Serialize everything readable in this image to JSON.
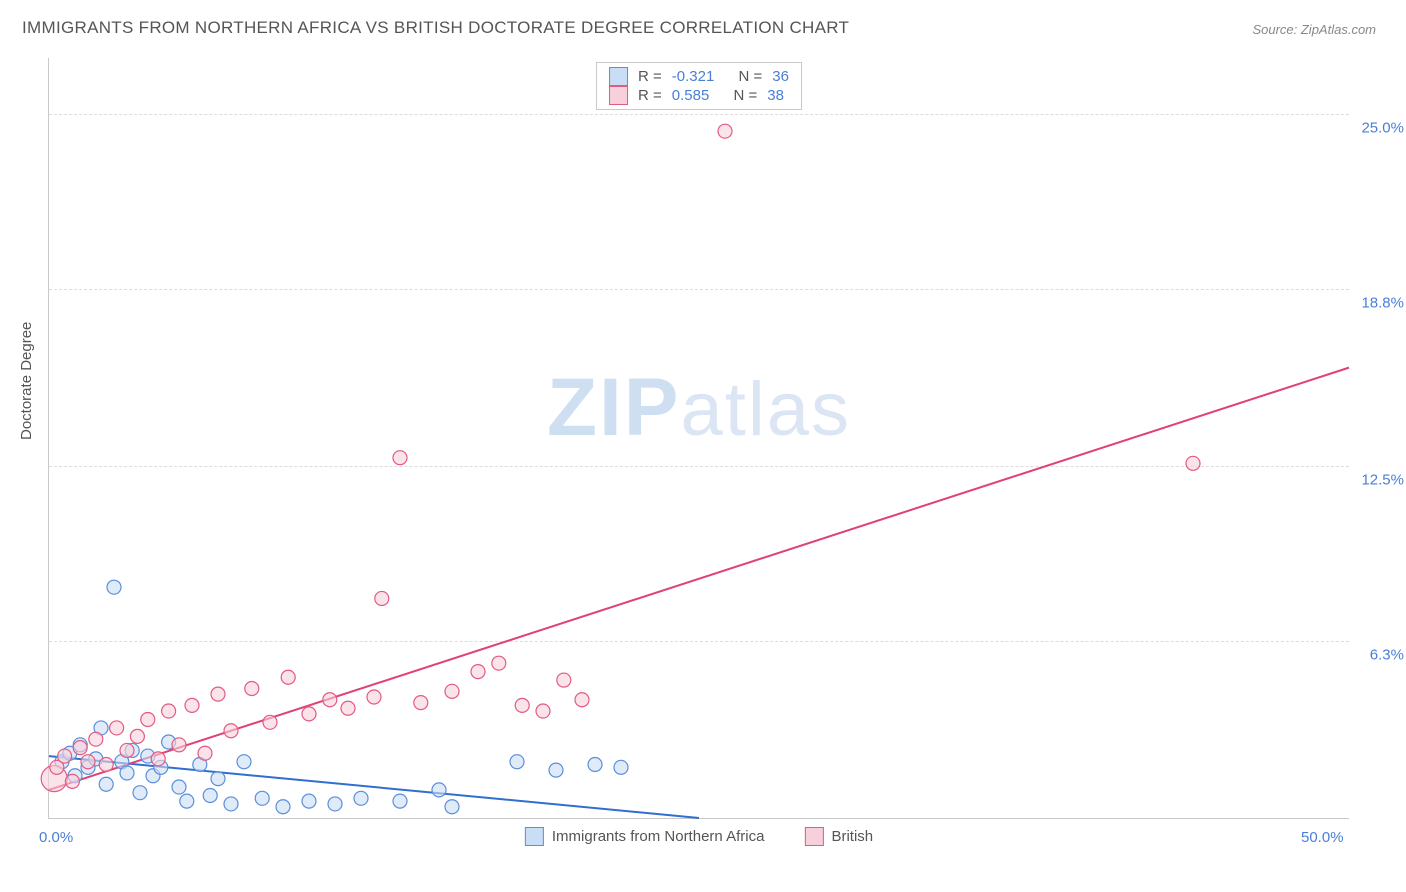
{
  "title": "IMMIGRANTS FROM NORTHERN AFRICA VS BRITISH DOCTORATE DEGREE CORRELATION CHART",
  "source": "Source: ZipAtlas.com",
  "watermark_bold": "ZIP",
  "watermark_rest": "atlas",
  "y_axis_title": "Doctorate Degree",
  "chart": {
    "type": "scatter",
    "xlim": [
      0,
      50
    ],
    "ylim": [
      0,
      27
    ],
    "x_ticks": [
      {
        "v": 0,
        "label": "0.0%"
      },
      {
        "v": 50,
        "label": "50.0%"
      }
    ],
    "y_gridlines": [
      6.3,
      12.5,
      18.8,
      25.0
    ],
    "y_tick_labels": [
      "6.3%",
      "12.5%",
      "18.8%",
      "25.0%"
    ],
    "background_color": "#ffffff",
    "grid_color": "#dcdcdc",
    "axis_color": "#c9c9c9",
    "tick_label_color": "#4a7fd6",
    "axis_title_color": "#555555",
    "title_color": "#555555",
    "title_fontsize": 17,
    "tick_fontsize": 15,
    "marker_radius": 7,
    "marker_radius_large": 13,
    "marker_stroke_width": 1.2,
    "line_width": 2,
    "series": [
      {
        "id": "northern_africa",
        "label": "Immigrants from Northern Africa",
        "fill": "#c9ddf5",
        "stroke": "#5b8edb",
        "fill_opacity": 0.6,
        "R": "-0.321",
        "N": "36",
        "trend": {
          "x1": 0,
          "y1": 2.2,
          "x2": 25,
          "y2": 0.0,
          "color": "#2f6fd0"
        },
        "points": [
          [
            0.5,
            2.0
          ],
          [
            0.8,
            2.3
          ],
          [
            1.0,
            1.5
          ],
          [
            1.2,
            2.6
          ],
          [
            1.5,
            1.8
          ],
          [
            1.8,
            2.1
          ],
          [
            2.0,
            3.2
          ],
          [
            2.2,
            1.2
          ],
          [
            2.5,
            8.2
          ],
          [
            2.8,
            2.0
          ],
          [
            3.0,
            1.6
          ],
          [
            3.2,
            2.4
          ],
          [
            3.5,
            0.9
          ],
          [
            3.8,
            2.2
          ],
          [
            4.0,
            1.5
          ],
          [
            4.3,
            1.8
          ],
          [
            4.6,
            2.7
          ],
          [
            5.0,
            1.1
          ],
          [
            5.3,
            0.6
          ],
          [
            5.8,
            1.9
          ],
          [
            6.2,
            0.8
          ],
          [
            6.5,
            1.4
          ],
          [
            7.0,
            0.5
          ],
          [
            7.5,
            2.0
          ],
          [
            8.2,
            0.7
          ],
          [
            9.0,
            0.4
          ],
          [
            10.0,
            0.6
          ],
          [
            11.0,
            0.5
          ],
          [
            12.0,
            0.7
          ],
          [
            13.5,
            0.6
          ],
          [
            15.0,
            1.0
          ],
          [
            15.5,
            0.4
          ],
          [
            18.0,
            2.0
          ],
          [
            19.5,
            1.7
          ],
          [
            21.0,
            1.9
          ],
          [
            22.0,
            1.8
          ]
        ]
      },
      {
        "id": "british",
        "label": "British",
        "fill": "#f6d0db",
        "stroke": "#e35a82",
        "fill_opacity": 0.6,
        "R": "0.585",
        "N": "38",
        "trend": {
          "x1": 0,
          "y1": 1.0,
          "x2": 50,
          "y2": 16.0,
          "color": "#e04177"
        },
        "points": [
          [
            0.3,
            1.8
          ],
          [
            0.6,
            2.2
          ],
          [
            0.9,
            1.3
          ],
          [
            1.2,
            2.5
          ],
          [
            1.5,
            2.0
          ],
          [
            1.8,
            2.8
          ],
          [
            2.2,
            1.9
          ],
          [
            2.6,
            3.2
          ],
          [
            3.0,
            2.4
          ],
          [
            3.4,
            2.9
          ],
          [
            3.8,
            3.5
          ],
          [
            4.2,
            2.1
          ],
          [
            4.6,
            3.8
          ],
          [
            5.0,
            2.6
          ],
          [
            5.5,
            4.0
          ],
          [
            6.0,
            2.3
          ],
          [
            6.5,
            4.4
          ],
          [
            7.0,
            3.1
          ],
          [
            7.8,
            4.6
          ],
          [
            8.5,
            3.4
          ],
          [
            9.2,
            5.0
          ],
          [
            10.0,
            3.7
          ],
          [
            10.8,
            4.2
          ],
          [
            11.5,
            3.9
          ],
          [
            12.5,
            4.3
          ],
          [
            12.8,
            7.8
          ],
          [
            13.5,
            12.8
          ],
          [
            14.3,
            4.1
          ],
          [
            15.5,
            4.5
          ],
          [
            16.5,
            5.2
          ],
          [
            17.3,
            5.5
          ],
          [
            18.2,
            4.0
          ],
          [
            19.0,
            3.8
          ],
          [
            19.8,
            4.9
          ],
          [
            20.5,
            4.2
          ],
          [
            26.0,
            24.4
          ],
          [
            44.0,
            12.6
          ]
        ],
        "large_points": [
          [
            0.2,
            1.4
          ]
        ]
      }
    ]
  },
  "top_legend": {
    "rows": [
      {
        "swatch_fill": "#c9ddf5",
        "swatch_stroke": "#5b8edb",
        "r_label": "R =",
        "r_val": "-0.321",
        "n_label": "N =",
        "n_val": "36"
      },
      {
        "swatch_fill": "#f6d0db",
        "swatch_stroke": "#e35a82",
        "r_label": "R =",
        "r_val": "0.585",
        "n_label": "N =",
        "n_val": "38"
      }
    ]
  },
  "bottom_legend": {
    "items": [
      {
        "swatch_fill": "#c9ddf5",
        "swatch_stroke": "#5b8edb",
        "label": "Immigrants from Northern Africa"
      },
      {
        "swatch_fill": "#f6d0db",
        "swatch_stroke": "#e35a82",
        "label": "British"
      }
    ]
  }
}
